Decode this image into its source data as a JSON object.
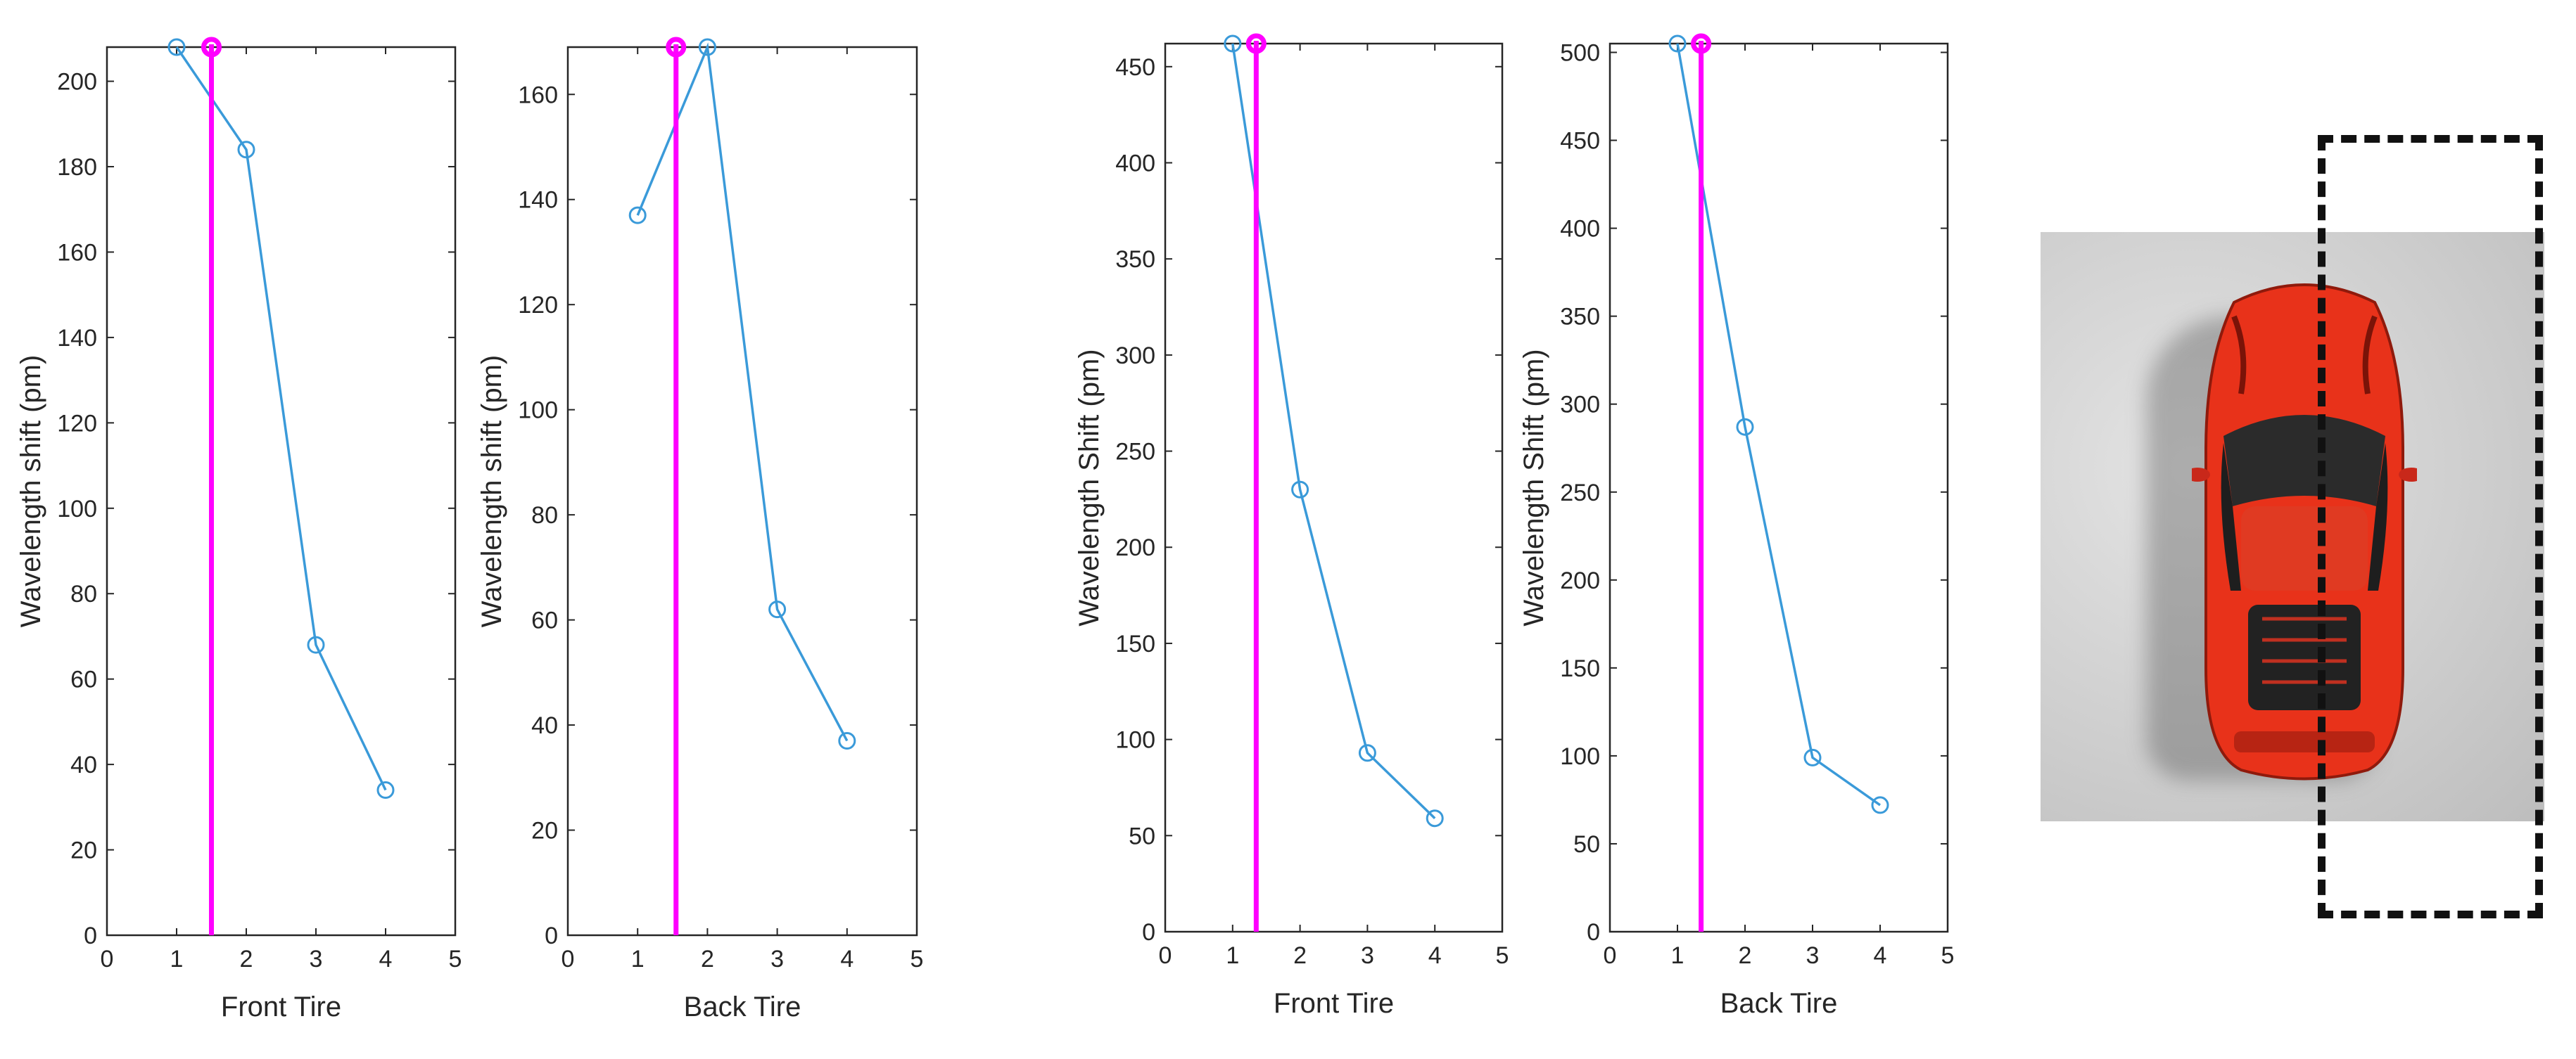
{
  "chart_data": [
    {
      "type": "line",
      "xlabel": "Front Tire",
      "ylabel": "Wavelength shift (pm)",
      "xlim": [
        0,
        5
      ],
      "ylim": [
        0,
        208
      ],
      "xticks": [
        "0",
        "1",
        "2",
        "3",
        "4",
        "5"
      ],
      "yticks": [
        "0",
        "20",
        "40",
        "60",
        "80",
        "100",
        "120",
        "140",
        "160",
        "180",
        "200"
      ],
      "series": [
        {
          "x": [
            1,
            2,
            3,
            4
          ],
          "y": [
            208,
            184,
            68,
            34
          ]
        }
      ],
      "marker_line_x": 1.5,
      "grid": false
    },
    {
      "type": "line",
      "xlabel": "Back Tire",
      "ylabel": "Wavelength shift (pm)",
      "xlim": [
        0,
        5
      ],
      "ylim": [
        0,
        169
      ],
      "xticks": [
        "0",
        "1",
        "2",
        "3",
        "4",
        "5"
      ],
      "yticks": [
        "0",
        "20",
        "40",
        "60",
        "80",
        "100",
        "120",
        "140",
        "160"
      ],
      "series": [
        {
          "x": [
            1,
            2,
            3,
            4
          ],
          "y": [
            137,
            169,
            62,
            37
          ]
        }
      ],
      "marker_line_x": 1.55,
      "grid": false
    },
    {
      "type": "line",
      "xlabel": "Front Tire",
      "ylabel": "Wavelength Shift (pm)",
      "xlim": [
        0,
        5
      ],
      "ylim": [
        0,
        462
      ],
      "xticks": [
        "0",
        "1",
        "2",
        "3",
        "4",
        "5"
      ],
      "yticks": [
        "0",
        "50",
        "100",
        "150",
        "200",
        "250",
        "300",
        "350",
        "400",
        "450"
      ],
      "series": [
        {
          "x": [
            1,
            2,
            3,
            4
          ],
          "y": [
            462,
            230,
            93,
            59
          ]
        }
      ],
      "marker_line_x": 1.35,
      "grid": false
    },
    {
      "type": "line",
      "xlabel": "Back Tire",
      "ylabel": "Wavelength Shift (pm)",
      "xlim": [
        0,
        5
      ],
      "ylim": [
        0,
        505
      ],
      "xticks": [
        "0",
        "1",
        "2",
        "3",
        "4",
        "5"
      ],
      "yticks": [
        "0",
        "50",
        "100",
        "150",
        "200",
        "250",
        "300",
        "350",
        "400",
        "450",
        "500"
      ],
      "series": [
        {
          "x": [
            1,
            2,
            3,
            4
          ],
          "y": [
            505,
            287,
            99,
            72
          ]
        }
      ],
      "marker_line_x": 1.35,
      "grid": false
    }
  ],
  "colors": {
    "series": "#3a9ad9",
    "marker_line": "#ff00ff",
    "axes": "#262626",
    "car_body": "#e8321a",
    "dashed_box": "#111111"
  },
  "icons": {
    "photo": "red-sports-car-top-view"
  }
}
